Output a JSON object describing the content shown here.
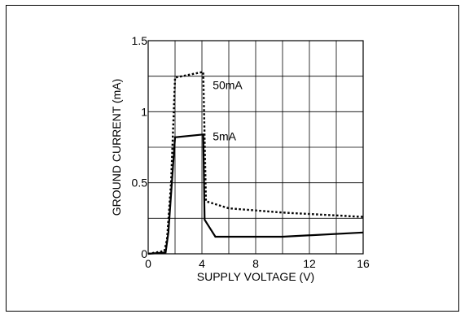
{
  "chart_data": {
    "type": "line",
    "xlabel": "SUPPLY VOLTAGE (V)",
    "ylabel": "GROUND CURRENT (mA)",
    "xlim": [
      0,
      16
    ],
    "ylim": [
      0,
      1.5
    ],
    "x_ticks": [
      0,
      4,
      8,
      12,
      16
    ],
    "y_ticks": [
      0,
      0.5,
      1,
      1.5
    ],
    "x_tick_labels": [
      "0",
      "4",
      "8",
      "12",
      "16"
    ],
    "y_tick_labels": [
      "0",
      "0.5",
      "1",
      "1.5"
    ],
    "grid": true,
    "x_grid_step": 2,
    "y_grid_step": 0.25,
    "series": [
      {
        "name": "50mA",
        "style": "dotted",
        "points": [
          [
            0,
            0
          ],
          [
            1.2,
            0.02
          ],
          [
            1.4,
            0.1
          ],
          [
            1.7,
            0.5
          ],
          [
            2.0,
            1.24
          ],
          [
            4.1,
            1.28
          ],
          [
            4.3,
            0.37
          ],
          [
            6,
            0.32
          ],
          [
            10,
            0.29
          ],
          [
            16,
            0.26
          ]
        ]
      },
      {
        "name": "5mA",
        "style": "solid",
        "points": [
          [
            0,
            0
          ],
          [
            1.3,
            0.01
          ],
          [
            1.5,
            0.15
          ],
          [
            2.0,
            0.82
          ],
          [
            4.1,
            0.84
          ],
          [
            4.2,
            0.24
          ],
          [
            5,
            0.12
          ],
          [
            10,
            0.12
          ],
          [
            16,
            0.15
          ]
        ]
      }
    ]
  }
}
